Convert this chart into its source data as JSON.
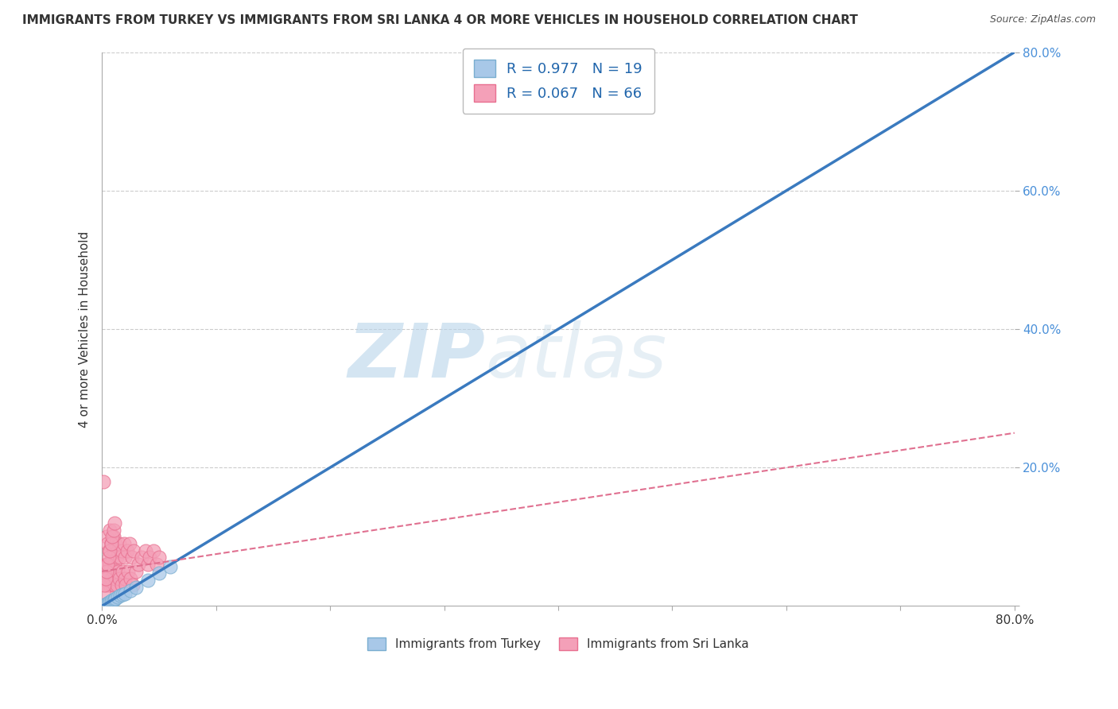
{
  "title": "IMMIGRANTS FROM TURKEY VS IMMIGRANTS FROM SRI LANKA 4 OR MORE VEHICLES IN HOUSEHOLD CORRELATION CHART",
  "source": "Source: ZipAtlas.com",
  "ylabel": "4 or more Vehicles in Household",
  "xlim": [
    0,
    0.8
  ],
  "ylim": [
    0,
    0.8
  ],
  "xticks": [
    0.0,
    0.1,
    0.2,
    0.3,
    0.4,
    0.5,
    0.6,
    0.7,
    0.8
  ],
  "yticks": [
    0.0,
    0.2,
    0.4,
    0.6,
    0.8
  ],
  "turkey_R": 0.977,
  "turkey_N": 19,
  "srilanka_R": 0.067,
  "srilanka_N": 66,
  "turkey_color": "#a8c8e8",
  "srilanka_color": "#f4a0b8",
  "turkey_edge": "#7aaed0",
  "srilanka_edge": "#e87090",
  "trend_turkey_color": "#3a7abf",
  "trend_srilanka_color": "#e07090",
  "watermark_color": "#d0e4f0",
  "legend_label_1": "Immigrants from Turkey",
  "legend_label_2": "Immigrants from Sri Lanka",
  "background_color": "#ffffff",
  "grid_color": "#cccccc",
  "turkey_x": [
    0.001,
    0.003,
    0.005,
    0.006,
    0.007,
    0.008,
    0.009,
    0.01,
    0.011,
    0.012,
    0.014,
    0.016,
    0.018,
    0.02,
    0.025,
    0.03,
    0.04,
    0.05,
    0.06
  ],
  "turkey_y": [
    0.001,
    0.003,
    0.004,
    0.005,
    0.006,
    0.007,
    0.008,
    0.009,
    0.01,
    0.011,
    0.013,
    0.015,
    0.016,
    0.018,
    0.022,
    0.027,
    0.037,
    0.047,
    0.057
  ],
  "srilanka_x": [
    0.001,
    0.002,
    0.003,
    0.003,
    0.004,
    0.004,
    0.005,
    0.005,
    0.005,
    0.006,
    0.006,
    0.007,
    0.007,
    0.007,
    0.008,
    0.008,
    0.009,
    0.009,
    0.01,
    0.01,
    0.01,
    0.011,
    0.011,
    0.012,
    0.012,
    0.013,
    0.013,
    0.014,
    0.014,
    0.015,
    0.015,
    0.016,
    0.017,
    0.017,
    0.018,
    0.019,
    0.02,
    0.02,
    0.021,
    0.022,
    0.023,
    0.024,
    0.025,
    0.026,
    0.027,
    0.028,
    0.03,
    0.032,
    0.035,
    0.038,
    0.04,
    0.042,
    0.045,
    0.048,
    0.05,
    0.001,
    0.002,
    0.003,
    0.004,
    0.005,
    0.006,
    0.007,
    0.008,
    0.009,
    0.01,
    0.011
  ],
  "srilanka_y": [
    0.18,
    0.04,
    0.06,
    0.03,
    0.06,
    0.1,
    0.06,
    0.09,
    0.03,
    0.08,
    0.05,
    0.11,
    0.06,
    0.03,
    0.09,
    0.04,
    0.07,
    0.03,
    0.08,
    0.05,
    0.1,
    0.06,
    0.03,
    0.09,
    0.04,
    0.07,
    0.03,
    0.08,
    0.05,
    0.09,
    0.04,
    0.07,
    0.03,
    0.08,
    0.05,
    0.09,
    0.04,
    0.07,
    0.03,
    0.08,
    0.05,
    0.09,
    0.04,
    0.07,
    0.03,
    0.08,
    0.05,
    0.06,
    0.07,
    0.08,
    0.06,
    0.07,
    0.08,
    0.06,
    0.07,
    0.02,
    0.03,
    0.04,
    0.05,
    0.06,
    0.07,
    0.08,
    0.09,
    0.1,
    0.11,
    0.12
  ]
}
